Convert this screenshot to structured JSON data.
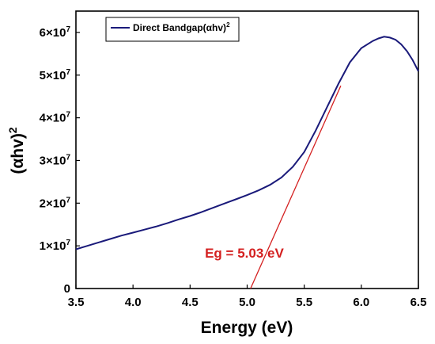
{
  "chart_data": {
    "type": "line",
    "xlabel": "Energy (eV)",
    "ylabel_base": "(αhv)",
    "ylabel_exp": "2",
    "xlim": [
      3.5,
      6.5
    ],
    "ylim": [
      0,
      65000000
    ],
    "x_ticks": [
      "3.5",
      "4.0",
      "4.5",
      "5.0",
      "5.5",
      "6.0",
      "6.5"
    ],
    "x_tick_values": [
      3.5,
      4.0,
      4.5,
      5.0,
      5.5,
      6.0,
      6.5
    ],
    "y_ticks": [
      {
        "value": 0,
        "mantissa": "0",
        "exp": ""
      },
      {
        "value": 10000000,
        "mantissa": "1×10",
        "exp": "7"
      },
      {
        "value": 20000000,
        "mantissa": "2×10",
        "exp": "7"
      },
      {
        "value": 30000000,
        "mantissa": "3×10",
        "exp": "7"
      },
      {
        "value": 40000000,
        "mantissa": "4×10",
        "exp": "7"
      },
      {
        "value": 50000000,
        "mantissa": "5×10",
        "exp": "7"
      },
      {
        "value": 60000000,
        "mantissa": "6×10",
        "exp": "7"
      }
    ],
    "series": [
      {
        "name": "Direct Bandgap(αhv)",
        "name_exp": "2",
        "color": "#1a1a7a",
        "x": [
          3.5,
          3.6,
          3.7,
          3.8,
          3.9,
          4.0,
          4.1,
          4.2,
          4.3,
          4.4,
          4.5,
          4.6,
          4.7,
          4.8,
          4.9,
          5.0,
          5.1,
          5.2,
          5.3,
          5.4,
          5.5,
          5.6,
          5.7,
          5.8,
          5.9,
          6.0,
          6.1,
          6.15,
          6.2,
          6.25,
          6.3,
          6.35,
          6.4,
          6.45,
          6.5
        ],
        "y": [
          9200000,
          10000000,
          10800000,
          11600000,
          12400000,
          13100000,
          13800000,
          14500000,
          15300000,
          16200000,
          17000000,
          17900000,
          18900000,
          19900000,
          20900000,
          21900000,
          23000000,
          24300000,
          26000000,
          28500000,
          32000000,
          37000000,
          42500000,
          48000000,
          53000000,
          56300000,
          58000000,
          58600000,
          59000000,
          58800000,
          58300000,
          57200000,
          55600000,
          53500000,
          50900000
        ]
      }
    ],
    "fit_line": {
      "color": "#d42020",
      "x": [
        5.03,
        5.82
      ],
      "y": [
        0,
        47500000
      ]
    },
    "annotation": {
      "text": "Eg = 5.03 eV",
      "color": "#d42020",
      "x": 4.63,
      "y": 7200000
    },
    "legend_position": "top-left",
    "grid": false
  }
}
